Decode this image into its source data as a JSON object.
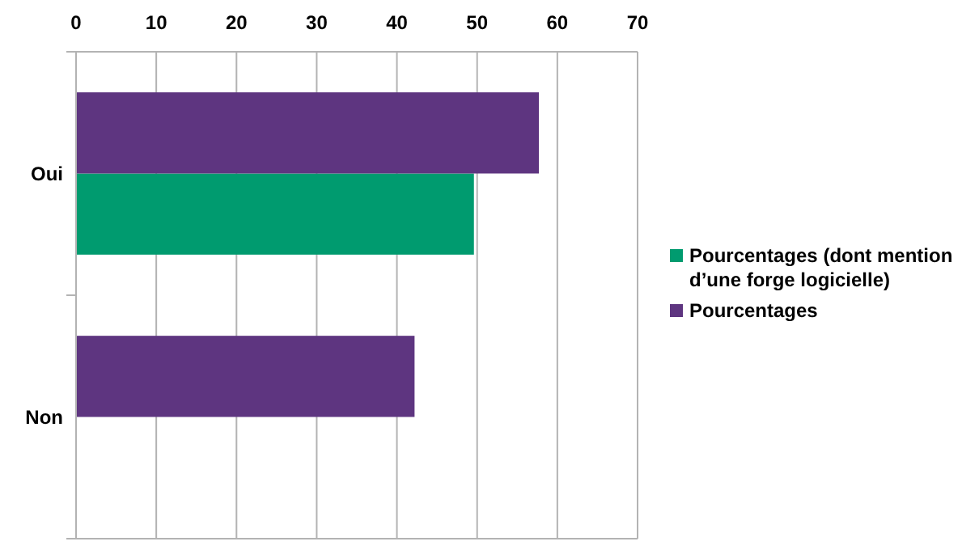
{
  "chart_data": {
    "type": "bar",
    "orientation": "horizontal",
    "categories": [
      "Oui",
      "Non"
    ],
    "series": [
      {
        "name": "Pourcentages (dont mention d’une forge logicielle)",
        "color": "#009b6f",
        "values": [
          49.6,
          null
        ]
      },
      {
        "name": "Pourcentages",
        "color": "#5e3580",
        "values": [
          57.7,
          42.2
        ]
      }
    ],
    "xlim": [
      0,
      70
    ],
    "xticks": [
      0,
      10,
      20,
      30,
      40,
      50,
      60,
      70
    ],
    "grid": "x",
    "legend": "right"
  }
}
